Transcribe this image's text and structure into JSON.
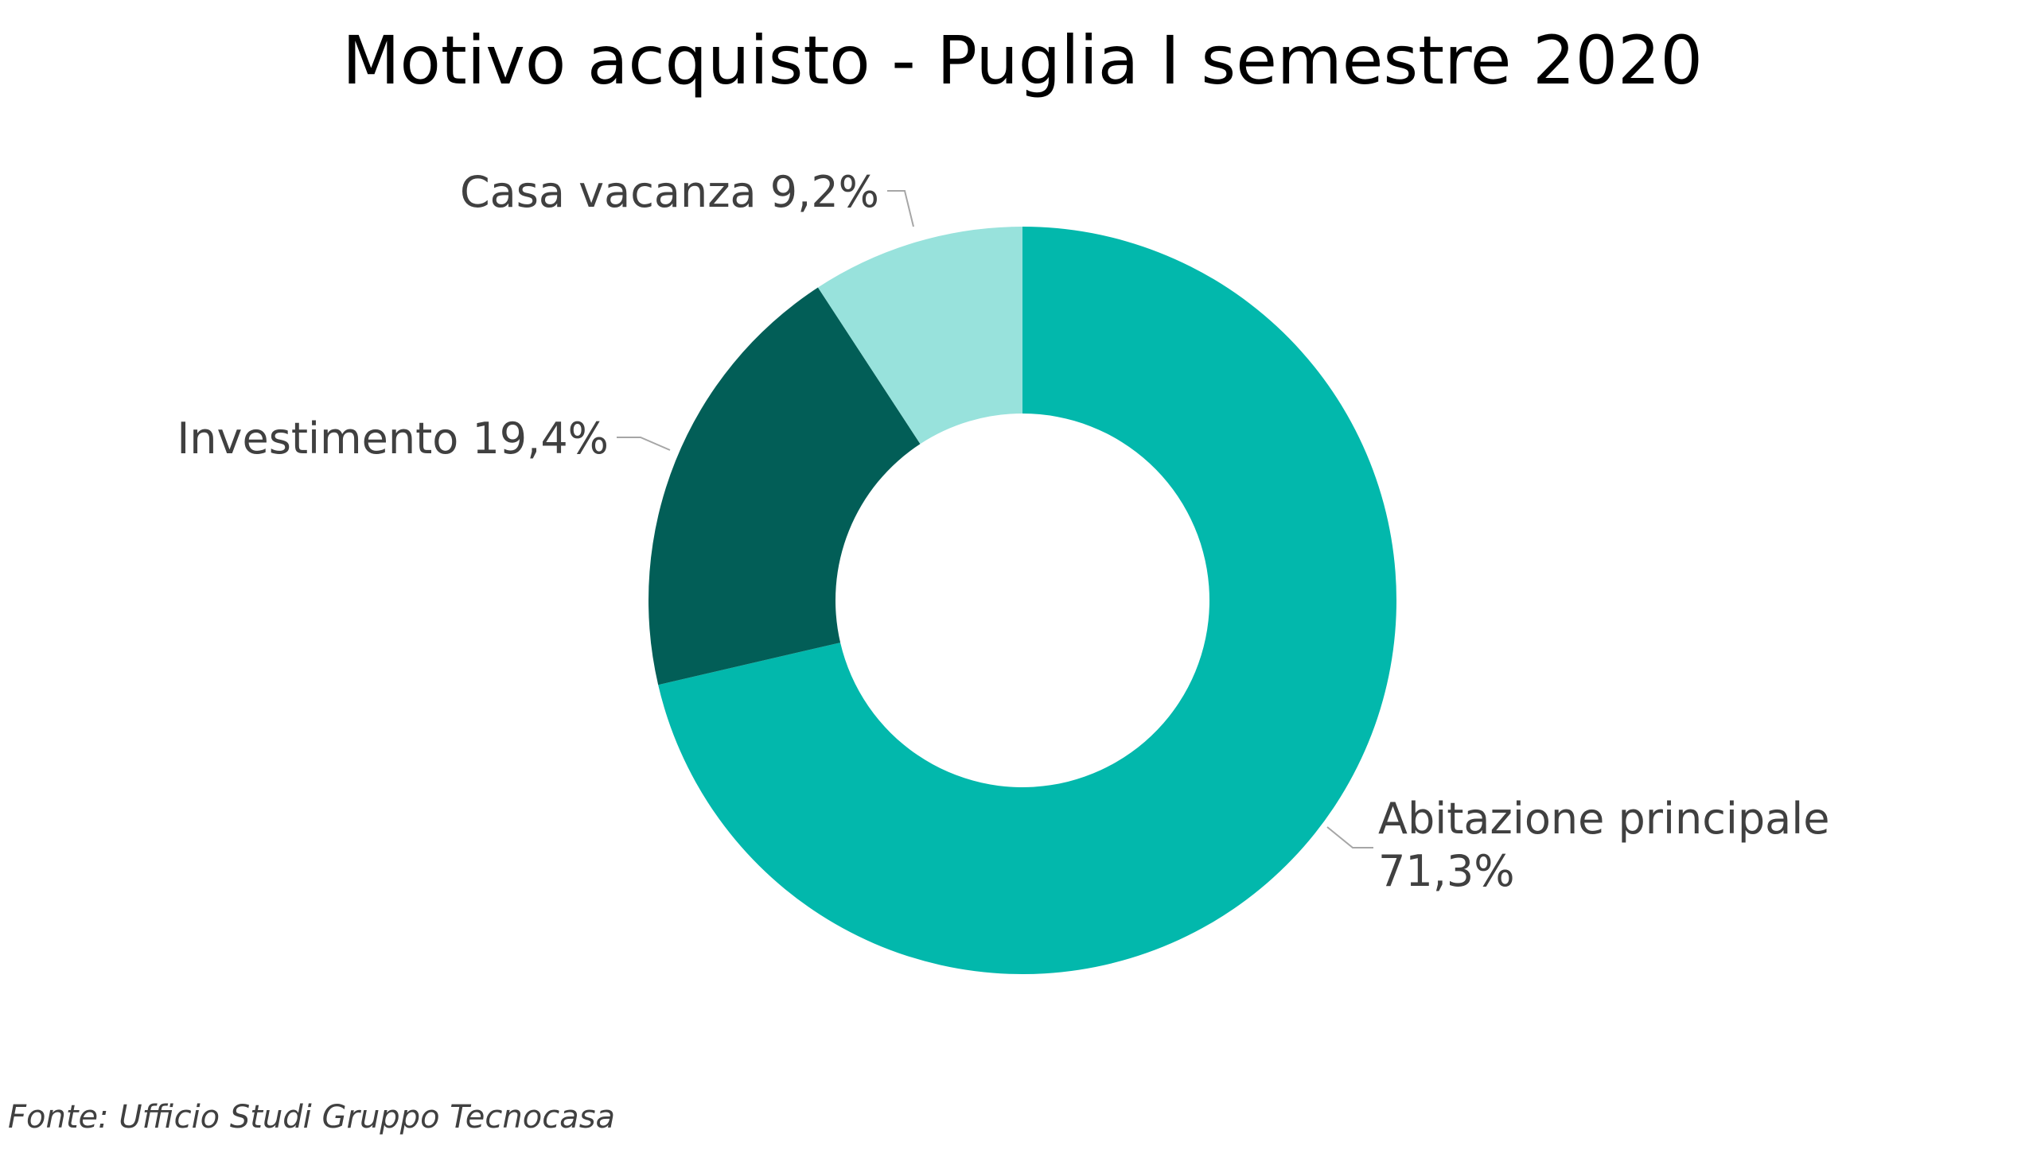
{
  "chart_data": {
    "type": "pie",
    "donut": true,
    "title": "Motivo acquisto - Puglia I semestre 2020",
    "slices": [
      {
        "name": "Abitazione principale",
        "value": 71.3,
        "label_lines": [
          "Abitazione principale",
          "71,3%"
        ],
        "color": "#02b8ac"
      },
      {
        "name": "Investimento",
        "value": 19.4,
        "label_lines": [
          "Investimento 19,4%"
        ],
        "color": "#025e57"
      },
      {
        "name": "Casa vacanza",
        "value": 9.2,
        "label_lines": [
          "Casa vacanza 9,2%"
        ],
        "color": "#98e2dc"
      }
    ],
    "source": "Fonte: Ufficio Studi Gruppo Tecnocasa"
  }
}
